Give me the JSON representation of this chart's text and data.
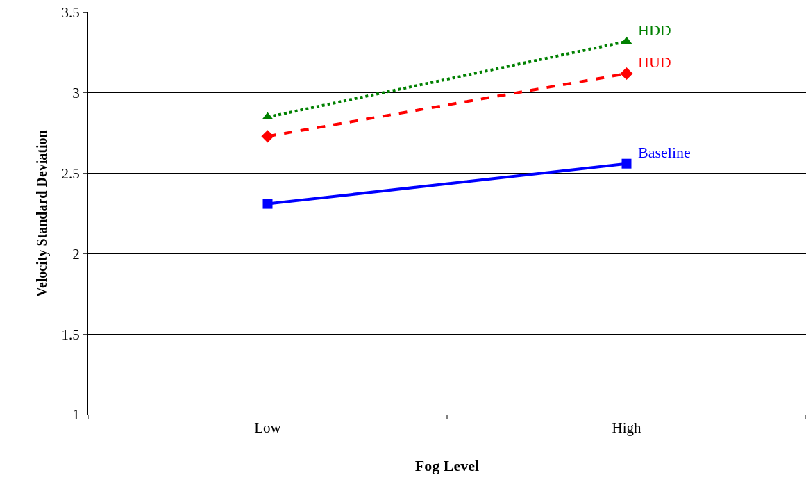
{
  "chart_data": {
    "type": "line",
    "xlabel": "Fog Level",
    "ylabel": "Velocity Standard Deviation",
    "categories": [
      "Low",
      "High"
    ],
    "series": [
      {
        "name": "HDD",
        "color": "#008000",
        "values": [
          2.85,
          3.32
        ],
        "marker": "triangle",
        "line_style": "dotted"
      },
      {
        "name": "HUD",
        "color": "#ff0000",
        "values": [
          2.73,
          3.12
        ],
        "marker": "diamond",
        "line_style": "dashed"
      },
      {
        "name": "Baseline",
        "color": "#0000ff",
        "values": [
          2.31,
          2.56
        ],
        "marker": "square",
        "line_style": "solid"
      }
    ],
    "ylim": [
      1,
      3.5
    ],
    "yticks": [
      1,
      1.5,
      2,
      2.5,
      3,
      3.5
    ],
    "grid": "y",
    "legend": false
  }
}
